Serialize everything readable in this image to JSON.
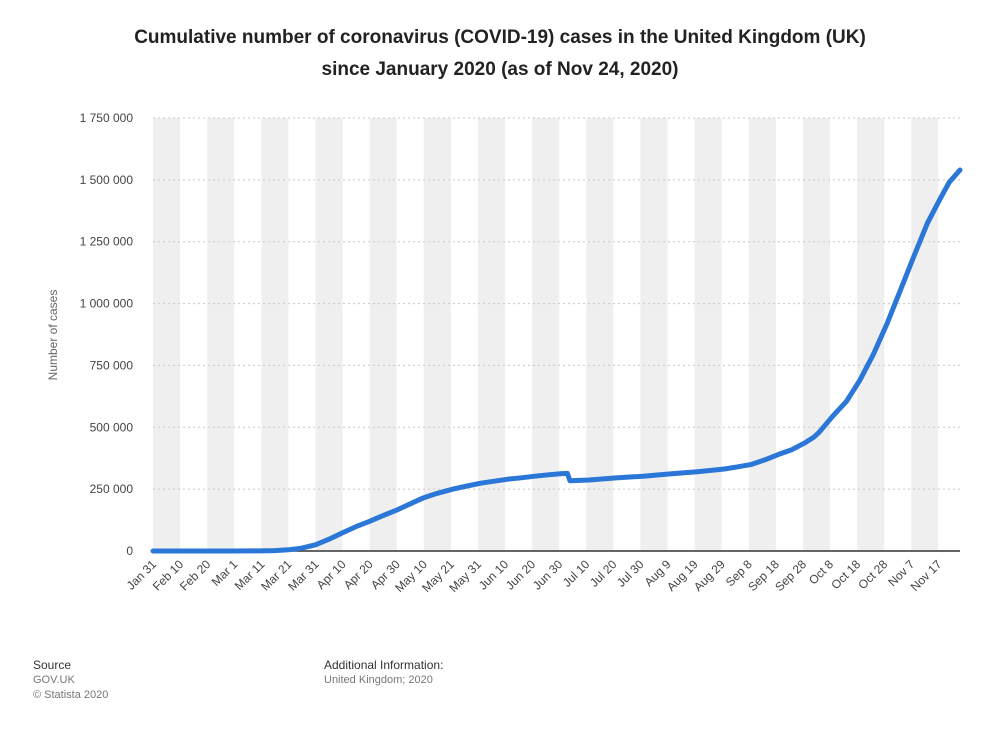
{
  "title_line1": "Cumulative number of coronavirus (COVID-19) cases in the United Kingdom (UK)",
  "title_line2": "since January 2020 (as of Nov 24, 2020)",
  "footer": {
    "source_heading": "Source",
    "source_name": "GOV.UK",
    "copyright": "© Statista 2020",
    "info_heading": "Additional Information:",
    "info_text": "United Kingdom; 2020"
  },
  "colors": {
    "line": "#2a77d8",
    "band": "#efefef",
    "grid": "#c8c8c8",
    "axis": "#333333"
  },
  "chart_data": {
    "type": "line",
    "title": "Cumulative number of coronavirus (COVID-19) cases in the United Kingdom (UK) since January 2020 (as of Nov 24, 2020)",
    "xlabel": "",
    "ylabel": "Number of cases",
    "ylim": [
      0,
      1750000
    ],
    "yticks": [
      0,
      250000,
      500000,
      750000,
      1000000,
      1250000,
      1500000,
      1750000
    ],
    "ytick_labels": [
      "0",
      "250 000",
      "500 000",
      "750 000",
      "1 000 000",
      "1 250 000",
      "1 500 000",
      "1 750 000"
    ],
    "xlim": [
      "2020-01-31",
      "2020-11-24"
    ],
    "xtick_labels": [
      "Jan 31",
      "Feb 10",
      "Feb 20",
      "Mar 1",
      "Mar 11",
      "Mar 21",
      "Mar 31",
      "Apr 10",
      "Apr 20",
      "Apr 30",
      "May 10",
      "May 21",
      "May 31",
      "Jun 10",
      "Jun 20",
      "Jun 30",
      "Jul 10",
      "Jul 20",
      "Jul 30",
      "Aug 9",
      "Aug 19",
      "Aug 29",
      "Sep 8",
      "Sep 18",
      "Sep 28",
      "Oct 8",
      "Oct 18",
      "Oct 28",
      "Nov 7",
      "Nov 17"
    ],
    "grid": true,
    "legend": "none",
    "series": [
      {
        "x": [
          "2020-01-31",
          "2020-02-10",
          "2020-02-20",
          "2020-03-01",
          "2020-03-11",
          "2020-03-16",
          "2020-03-21",
          "2020-03-26",
          "2020-03-31",
          "2020-04-05",
          "2020-04-10",
          "2020-04-15",
          "2020-04-20",
          "2020-04-25",
          "2020-04-30",
          "2020-05-05",
          "2020-05-10",
          "2020-05-15",
          "2020-05-21",
          "2020-05-26",
          "2020-05-31",
          "2020-06-05",
          "2020-06-10",
          "2020-06-15",
          "2020-06-20",
          "2020-06-25",
          "2020-06-30",
          "2020-07-02",
          "2020-07-03",
          "2020-07-10",
          "2020-07-20",
          "2020-07-30",
          "2020-08-09",
          "2020-08-19",
          "2020-08-29",
          "2020-09-03",
          "2020-09-08",
          "2020-09-13",
          "2020-09-18",
          "2020-09-23",
          "2020-09-28",
          "2020-10-01",
          "2020-10-03",
          "2020-10-08",
          "2020-10-13",
          "2020-10-18",
          "2020-10-23",
          "2020-10-28",
          "2020-11-02",
          "2020-11-07",
          "2020-11-12",
          "2020-11-17",
          "2020-11-20",
          "2020-11-24"
        ],
        "y": [
          2,
          9,
          9,
          36,
          460,
          1540,
          5020,
          11660,
          25150,
          47800,
          73760,
          98480,
          120070,
          143460,
          165220,
          190580,
          215260,
          233150,
          251000,
          262600,
          274000,
          281900,
          290100,
          295900,
          302500,
          307980,
          312650,
          313480,
          283760,
          287000,
          295400,
          302300,
          311600,
          320300,
          331600,
          340400,
          350100,
          368500,
          390400,
          409700,
          439000,
          460000,
          480000,
          545000,
          603700,
          690000,
          794000,
          917600,
          1053900,
          1192100,
          1326000,
          1430000,
          1490000,
          1540000
        ]
      }
    ]
  }
}
